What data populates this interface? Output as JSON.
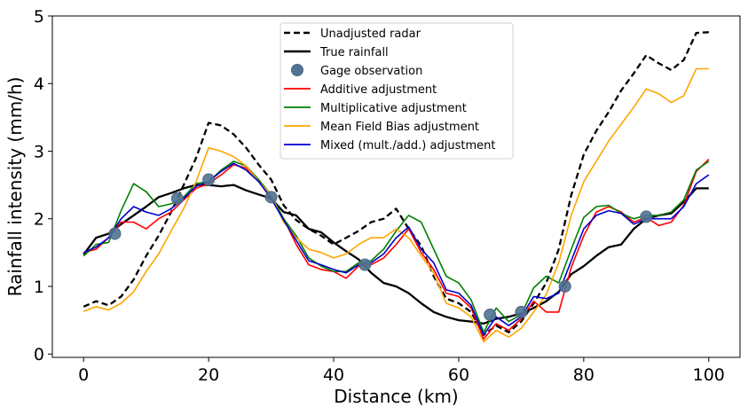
{
  "chart_data": {
    "type": "line",
    "xlabel": "Distance (km)",
    "ylabel": "Rainfall intensity (mm/h)",
    "xlim": [
      -5,
      105
    ],
    "ylim": [
      -0.05,
      5.0
    ],
    "xticks": [
      0,
      20,
      40,
      60,
      80,
      100
    ],
    "yticks": [
      0,
      1,
      2,
      3,
      4,
      5
    ],
    "grid": false,
    "legend_position": "upper-center",
    "series": [
      {
        "name": "Unadjusted radar",
        "color": "#000000",
        "style": "dashed",
        "x": [
          0,
          2,
          4,
          6,
          8,
          10,
          12,
          14,
          16,
          18,
          20,
          22,
          24,
          26,
          28,
          30,
          32,
          34,
          36,
          38,
          40,
          42,
          44,
          46,
          48,
          50,
          52,
          54,
          56,
          58,
          60,
          62,
          64,
          66,
          68,
          70,
          72,
          74,
          76,
          78,
          80,
          82,
          84,
          86,
          88,
          90,
          92,
          94,
          96,
          98,
          100
        ],
        "y": [
          0.7,
          0.78,
          0.72,
          0.85,
          1.1,
          1.45,
          1.75,
          2.1,
          2.5,
          2.9,
          3.42,
          3.38,
          3.25,
          3.05,
          2.8,
          2.58,
          2.2,
          1.98,
          1.85,
          1.75,
          1.62,
          1.72,
          1.82,
          1.95,
          2.0,
          2.15,
          1.85,
          1.6,
          1.15,
          0.82,
          0.75,
          0.62,
          0.28,
          0.42,
          0.32,
          0.48,
          0.75,
          1.05,
          1.55,
          2.35,
          2.95,
          3.3,
          3.58,
          3.9,
          4.15,
          4.42,
          4.3,
          4.2,
          4.35,
          4.75,
          4.76
        ]
      },
      {
        "name": "True rainfall",
        "color": "#000000",
        "style": "solid",
        "x": [
          0,
          2,
          4,
          6,
          8,
          10,
          12,
          14,
          16,
          18,
          20,
          22,
          24,
          26,
          28,
          30,
          32,
          34,
          36,
          38,
          40,
          42,
          44,
          46,
          48,
          50,
          52,
          54,
          56,
          58,
          60,
          62,
          64,
          66,
          68,
          70,
          72,
          74,
          76,
          78,
          80,
          82,
          84,
          86,
          88,
          90,
          92,
          94,
          96,
          98,
          100
        ],
        "y": [
          1.47,
          1.72,
          1.78,
          1.92,
          2.05,
          2.18,
          2.32,
          2.38,
          2.45,
          2.5,
          2.5,
          2.48,
          2.5,
          2.42,
          2.36,
          2.3,
          2.1,
          2.05,
          1.85,
          1.8,
          1.65,
          1.52,
          1.4,
          1.2,
          1.05,
          1.0,
          0.9,
          0.75,
          0.62,
          0.55,
          0.5,
          0.48,
          0.45,
          0.52,
          0.55,
          0.6,
          0.68,
          0.78,
          0.92,
          1.18,
          1.3,
          1.45,
          1.58,
          1.62,
          1.85,
          2.0,
          2.05,
          2.08,
          2.25,
          2.45,
          2.45
        ]
      },
      {
        "name": "Gage observation",
        "color": "#4f7393",
        "style": "markers",
        "x": [
          5,
          15,
          20,
          30,
          45,
          65,
          70,
          77,
          90
        ],
        "y": [
          1.78,
          2.3,
          2.58,
          2.32,
          1.32,
          0.58,
          0.62,
          1.0,
          2.03
        ]
      },
      {
        "name": "Additive adjustment",
        "color": "#ff0000",
        "style": "solid",
        "x": [
          0,
          2,
          4,
          6,
          8,
          10,
          12,
          14,
          16,
          18,
          20,
          22,
          24,
          26,
          28,
          30,
          32,
          34,
          36,
          38,
          40,
          42,
          44,
          46,
          48,
          50,
          52,
          54,
          56,
          58,
          60,
          62,
          64,
          66,
          68,
          70,
          72,
          74,
          76,
          78,
          80,
          82,
          84,
          86,
          88,
          90,
          92,
          94,
          96,
          98,
          100
        ],
        "y": [
          1.5,
          1.55,
          1.72,
          1.95,
          1.95,
          1.85,
          2.0,
          2.1,
          2.28,
          2.45,
          2.52,
          2.65,
          2.8,
          2.75,
          2.55,
          2.32,
          2.0,
          1.62,
          1.32,
          1.25,
          1.22,
          1.12,
          1.3,
          1.32,
          1.42,
          1.62,
          1.85,
          1.5,
          1.25,
          0.9,
          0.85,
          0.68,
          0.22,
          0.45,
          0.35,
          0.52,
          0.78,
          0.62,
          0.62,
          1.28,
          1.75,
          2.1,
          2.18,
          2.1,
          1.95,
          2.02,
          1.9,
          1.95,
          2.2,
          2.7,
          2.88
        ]
      },
      {
        "name": "Multiplicative adjustment",
        "color": "#008000",
        "style": "solid",
        "x": [
          0,
          2,
          4,
          6,
          8,
          10,
          12,
          14,
          16,
          18,
          20,
          22,
          24,
          26,
          28,
          30,
          32,
          34,
          36,
          38,
          40,
          42,
          44,
          46,
          48,
          50,
          52,
          54,
          56,
          58,
          60,
          62,
          64,
          66,
          68,
          70,
          72,
          74,
          76,
          78,
          80,
          82,
          84,
          86,
          88,
          90,
          92,
          94,
          96,
          98,
          100
        ],
        "y": [
          1.45,
          1.62,
          1.65,
          2.12,
          2.52,
          2.4,
          2.18,
          2.22,
          2.32,
          2.52,
          2.55,
          2.72,
          2.85,
          2.78,
          2.58,
          2.35,
          2.0,
          1.75,
          1.42,
          1.3,
          1.22,
          1.22,
          1.35,
          1.38,
          1.55,
          1.82,
          2.05,
          1.95,
          1.55,
          1.15,
          1.05,
          0.8,
          0.32,
          0.68,
          0.48,
          0.58,
          0.98,
          1.15,
          1.05,
          1.55,
          2.02,
          2.18,
          2.2,
          2.08,
          2.0,
          2.05,
          2.05,
          2.1,
          2.28,
          2.72,
          2.85
        ]
      },
      {
        "name": "Mean Field Bias adjustment",
        "color": "#ffa500",
        "style": "solid",
        "x": [
          0,
          2,
          4,
          6,
          8,
          10,
          12,
          14,
          16,
          18,
          20,
          22,
          24,
          26,
          28,
          30,
          32,
          34,
          36,
          38,
          40,
          42,
          44,
          46,
          48,
          50,
          52,
          54,
          56,
          58,
          60,
          62,
          64,
          66,
          68,
          70,
          72,
          74,
          76,
          78,
          80,
          82,
          84,
          86,
          88,
          90,
          92,
          94,
          96,
          98,
          100
        ],
        "y": [
          0.63,
          0.7,
          0.65,
          0.75,
          0.92,
          1.22,
          1.48,
          1.82,
          2.15,
          2.55,
          3.05,
          3.0,
          2.92,
          2.78,
          2.55,
          2.35,
          1.95,
          1.72,
          1.55,
          1.5,
          1.42,
          1.48,
          1.62,
          1.72,
          1.72,
          1.85,
          1.72,
          1.45,
          1.2,
          0.75,
          0.68,
          0.55,
          0.18,
          0.35,
          0.25,
          0.38,
          0.62,
          0.88,
          1.35,
          2.05,
          2.55,
          2.85,
          3.15,
          3.4,
          3.65,
          3.92,
          3.85,
          3.72,
          3.82,
          4.22,
          4.22
        ]
      },
      {
        "name": "Mixed (mult./add.) adjustment",
        "color": "#0000cd",
        "style": "solid",
        "x": [
          0,
          2,
          4,
          6,
          8,
          10,
          12,
          14,
          16,
          18,
          20,
          22,
          24,
          26,
          28,
          30,
          32,
          34,
          36,
          38,
          40,
          42,
          44,
          46,
          48,
          50,
          52,
          54,
          56,
          58,
          60,
          62,
          64,
          66,
          68,
          70,
          72,
          74,
          76,
          78,
          80,
          82,
          84,
          86,
          88,
          90,
          92,
          94,
          96,
          98,
          100
        ],
        "y": [
          1.5,
          1.58,
          1.72,
          2.0,
          2.18,
          2.1,
          2.05,
          2.15,
          2.3,
          2.48,
          2.55,
          2.7,
          2.82,
          2.72,
          2.55,
          2.3,
          1.98,
          1.68,
          1.38,
          1.32,
          1.25,
          1.2,
          1.32,
          1.35,
          1.48,
          1.72,
          1.88,
          1.55,
          1.35,
          0.95,
          0.9,
          0.72,
          0.28,
          0.55,
          0.42,
          0.55,
          0.85,
          0.82,
          0.9,
          1.38,
          1.85,
          2.05,
          2.12,
          2.08,
          1.92,
          2.0,
          2.0,
          2.0,
          2.18,
          2.52,
          2.65
        ]
      }
    ]
  }
}
